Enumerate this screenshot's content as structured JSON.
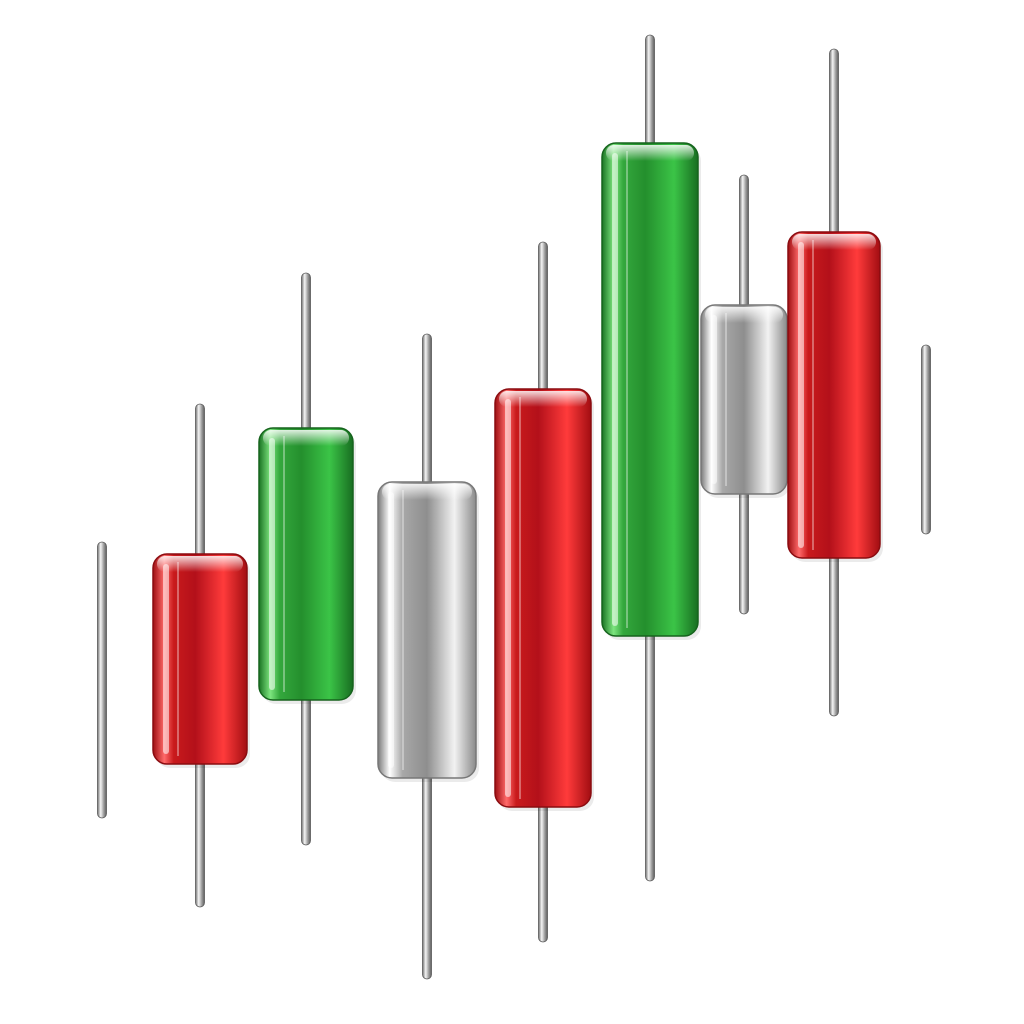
{
  "illustration": {
    "subject": "glossy-3d-candlesticks",
    "candles": [
      {
        "kind": "wick-only",
        "color": "silver"
      },
      {
        "kind": "candle",
        "color": "red"
      },
      {
        "kind": "candle",
        "color": "green"
      },
      {
        "kind": "candle",
        "color": "silver"
      },
      {
        "kind": "candle",
        "color": "red"
      },
      {
        "kind": "candle",
        "color": "green"
      },
      {
        "kind": "candle",
        "color": "silver"
      },
      {
        "kind": "candle",
        "color": "red"
      },
      {
        "kind": "wick-only",
        "color": "silver"
      }
    ],
    "palette": {
      "red": "#d42424",
      "green": "#2fa63a",
      "silver": "#c9c9c9",
      "background": "#ffffff"
    }
  }
}
